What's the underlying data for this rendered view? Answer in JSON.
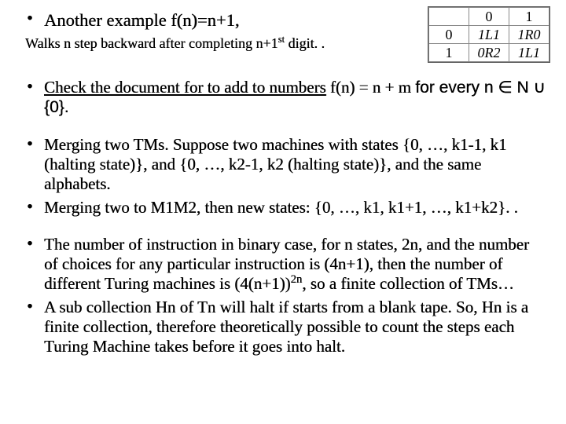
{
  "colors": {
    "bg": "#ffffff",
    "text": "#000000",
    "table_border": "#888888"
  },
  "table": {
    "header_row": [
      "",
      "0",
      "1"
    ],
    "rows": [
      {
        "label": "0",
        "c0": "1L1",
        "c1": "1R0"
      },
      {
        "label": "1",
        "c0": "0R2",
        "c1": "1L1"
      }
    ]
  },
  "bullets": {
    "b1_a": "Another example f(n)=n+1,",
    "b1_sub_a": "Walks n step backward after completing n+1",
    "b1_sub_sup": "st",
    "b1_sub_b": " digit. .",
    "b2_a": "Check the document for to add to numbers",
    "b2_b": " f(n) = n + m ",
    "b2_c": "for every n ",
    "b2_in": "∈",
    "b2_d": " N ",
    "b2_cup": "∪",
    "b2_e": " {0}.",
    "b3": "Merging two TMs. Suppose two machines with states {0, …, k1-1, k1 (halting state)}, and {0, …, k2-1, k2 (halting state)}, and the same alphabets.",
    "b4": "Merging two to M1M2,  then new states: {0, …, k1, k1+1, …, k1+k2}. .",
    "b5_a": "The number of instruction in binary case, for n states, 2n, and the number of choices for any particular instruction is (4n+1), then the number of different Turing machines is (4(n+1))",
    "b5_sup": "2n",
    "b5_b": ",  so a finite collection of TMs…",
    "b6": "A sub collection Hn of Tn will halt if starts from a blank tape. So, Hn is a finite collection, therefore theoretically possible to count the steps each Turing Machine takes before it goes into halt."
  },
  "fonts": {
    "serif": "Times New Roman",
    "sans": "Arial"
  }
}
